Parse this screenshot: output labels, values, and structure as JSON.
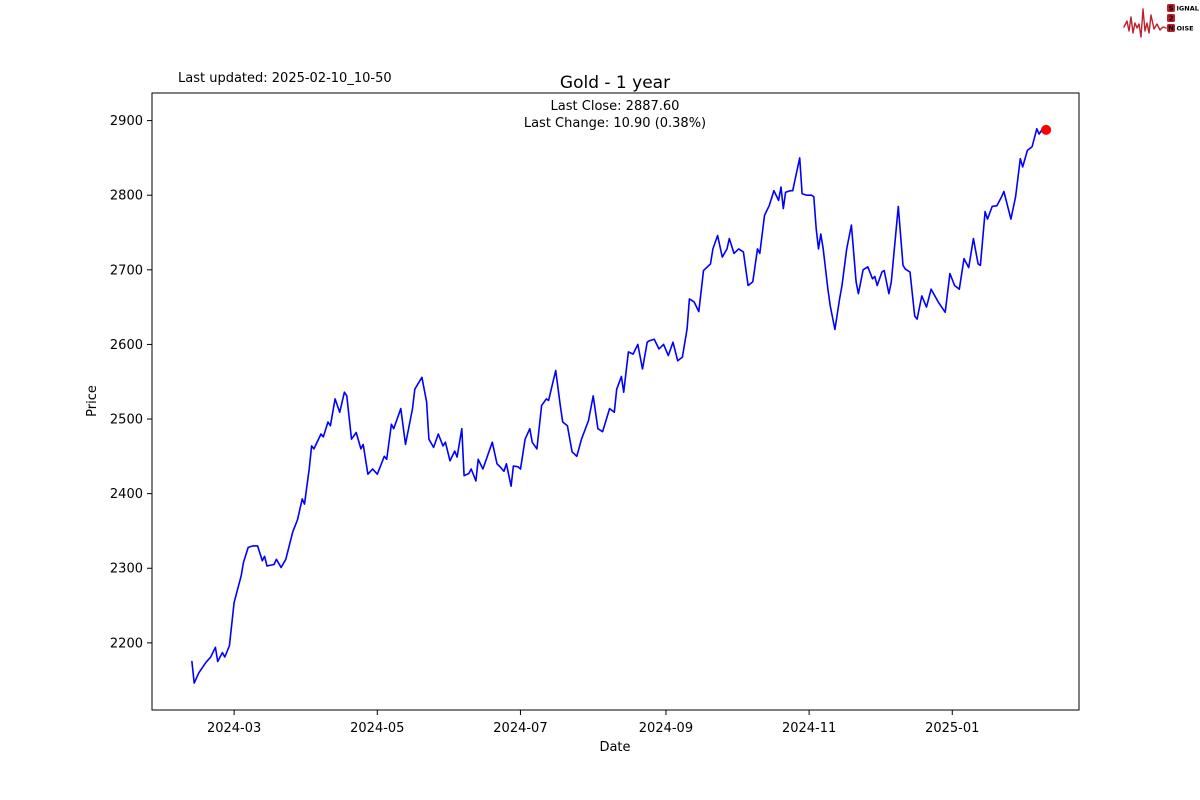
{
  "header": {
    "last_updated": "Last updated: 2025-02-10_10-50",
    "title": "Gold - 1 year",
    "subtitle_close": "Last Close: 2887.60",
    "subtitle_change": "Last Change: 10.90 (0.38%)"
  },
  "logo": {
    "word1_first": "S",
    "word1_rest": "IGNAL",
    "word2": "2",
    "word3_first": "N",
    "word3_rest": "OISE",
    "accent_color": "#c0202e",
    "text_color": "#1a1a1a"
  },
  "chart_data": {
    "type": "line",
    "title": "Gold - 1 year",
    "xlabel": "Date",
    "ylabel": "Price",
    "grid": false,
    "legend": "none",
    "line_color": "#0000ff",
    "line_width": 1.6,
    "end_marker_color": "#ff0000",
    "end_marker_radius": 5,
    "axis_color": "#000000",
    "xlim": [
      "2024-01-26",
      "2025-02-24"
    ],
    "ylim": [
      2110,
      2937
    ],
    "x_ticks": [
      {
        "label": "2024-03",
        "date": "2024-03-01"
      },
      {
        "label": "2024-05",
        "date": "2024-05-01"
      },
      {
        "label": "2024-07",
        "date": "2024-07-01"
      },
      {
        "label": "2024-09",
        "date": "2024-09-01"
      },
      {
        "label": "2024-11",
        "date": "2024-11-01"
      },
      {
        "label": "2025-01",
        "date": "2025-01-01"
      }
    ],
    "y_ticks": [
      2200,
      2300,
      2400,
      2500,
      2600,
      2700,
      2800,
      2900
    ],
    "last_close": 2887.6,
    "last_change": 10.9,
    "last_change_pct": "0.38%",
    "series": [
      {
        "name": "Gold",
        "points": [
          [
            "2024-02-12",
            2175
          ],
          [
            "2024-02-13",
            2146
          ],
          [
            "2024-02-15",
            2160
          ],
          [
            "2024-02-18",
            2174
          ],
          [
            "2024-02-20",
            2181
          ],
          [
            "2024-02-22",
            2194
          ],
          [
            "2024-02-23",
            2175
          ],
          [
            "2024-02-25",
            2187
          ],
          [
            "2024-02-26",
            2181
          ],
          [
            "2024-02-28",
            2196
          ],
          [
            "2024-03-01",
            2254
          ],
          [
            "2024-03-04",
            2290
          ],
          [
            "2024-03-05",
            2308
          ],
          [
            "2024-03-07",
            2328
          ],
          [
            "2024-03-09",
            2330
          ],
          [
            "2024-03-11",
            2330
          ],
          [
            "2024-03-13",
            2310
          ],
          [
            "2024-03-14",
            2316
          ],
          [
            "2024-03-15",
            2303
          ],
          [
            "2024-03-18",
            2305
          ],
          [
            "2024-03-19",
            2312
          ],
          [
            "2024-03-21",
            2301
          ],
          [
            "2024-03-23",
            2312
          ],
          [
            "2024-03-26",
            2349
          ],
          [
            "2024-03-28",
            2365
          ],
          [
            "2024-03-30",
            2393
          ],
          [
            "2024-03-31",
            2386
          ],
          [
            "2024-04-02",
            2433
          ],
          [
            "2024-04-03",
            2464
          ],
          [
            "2024-04-04",
            2460
          ],
          [
            "2024-04-07",
            2480
          ],
          [
            "2024-04-08",
            2476
          ],
          [
            "2024-04-10",
            2496
          ],
          [
            "2024-04-11",
            2491
          ],
          [
            "2024-04-13",
            2527
          ],
          [
            "2024-04-15",
            2509
          ],
          [
            "2024-04-17",
            2536
          ],
          [
            "2024-04-18",
            2531
          ],
          [
            "2024-04-20",
            2473
          ],
          [
            "2024-04-22",
            2482
          ],
          [
            "2024-04-24",
            2460
          ],
          [
            "2024-04-25",
            2466
          ],
          [
            "2024-04-27",
            2426
          ],
          [
            "2024-04-29",
            2433
          ],
          [
            "2024-05-01",
            2426
          ],
          [
            "2024-05-04",
            2450
          ],
          [
            "2024-05-05",
            2446
          ],
          [
            "2024-05-07",
            2493
          ],
          [
            "2024-05-08",
            2487
          ],
          [
            "2024-05-11",
            2514
          ],
          [
            "2024-05-13",
            2466
          ],
          [
            "2024-05-16",
            2514
          ],
          [
            "2024-05-17",
            2540
          ],
          [
            "2024-05-20",
            2556
          ],
          [
            "2024-05-22",
            2523
          ],
          [
            "2024-05-23",
            2473
          ],
          [
            "2024-05-25",
            2462
          ],
          [
            "2024-05-27",
            2480
          ],
          [
            "2024-05-29",
            2464
          ],
          [
            "2024-05-30",
            2469
          ],
          [
            "2024-06-01",
            2444
          ],
          [
            "2024-06-03",
            2457
          ],
          [
            "2024-06-04",
            2449
          ],
          [
            "2024-06-06",
            2487
          ],
          [
            "2024-06-07",
            2424
          ],
          [
            "2024-06-09",
            2427
          ],
          [
            "2024-06-10",
            2433
          ],
          [
            "2024-06-12",
            2417
          ],
          [
            "2024-06-13",
            2446
          ],
          [
            "2024-06-15",
            2433
          ],
          [
            "2024-06-19",
            2469
          ],
          [
            "2024-06-21",
            2440
          ],
          [
            "2024-06-22",
            2437
          ],
          [
            "2024-06-24",
            2430
          ],
          [
            "2024-06-25",
            2440
          ],
          [
            "2024-06-27",
            2410
          ],
          [
            "2024-06-28",
            2437
          ],
          [
            "2024-06-30",
            2436
          ],
          [
            "2024-07-01",
            2433
          ],
          [
            "2024-07-03",
            2473
          ],
          [
            "2024-07-05",
            2487
          ],
          [
            "2024-07-06",
            2469
          ],
          [
            "2024-07-08",
            2460
          ],
          [
            "2024-07-10",
            2518
          ],
          [
            "2024-07-12",
            2527
          ],
          [
            "2024-07-13",
            2525
          ],
          [
            "2024-07-16",
            2565
          ],
          [
            "2024-07-18",
            2518
          ],
          [
            "2024-07-19",
            2496
          ],
          [
            "2024-07-21",
            2491
          ],
          [
            "2024-07-23",
            2456
          ],
          [
            "2024-07-25",
            2450
          ],
          [
            "2024-07-27",
            2473
          ],
          [
            "2024-07-30",
            2498
          ],
          [
            "2024-08-01",
            2531
          ],
          [
            "2024-08-03",
            2487
          ],
          [
            "2024-08-05",
            2483
          ],
          [
            "2024-08-08",
            2514
          ],
          [
            "2024-08-10",
            2509
          ],
          [
            "2024-08-11",
            2540
          ],
          [
            "2024-08-13",
            2557
          ],
          [
            "2024-08-14",
            2536
          ],
          [
            "2024-08-16",
            2590
          ],
          [
            "2024-08-18",
            2587
          ],
          [
            "2024-08-20",
            2600
          ],
          [
            "2024-08-22",
            2567
          ],
          [
            "2024-08-24",
            2603
          ],
          [
            "2024-08-25",
            2605
          ],
          [
            "2024-08-27",
            2607
          ],
          [
            "2024-08-29",
            2594
          ],
          [
            "2024-08-31",
            2600
          ],
          [
            "2024-09-02",
            2585
          ],
          [
            "2024-09-04",
            2603
          ],
          [
            "2024-09-06",
            2578
          ],
          [
            "2024-09-08",
            2583
          ],
          [
            "2024-09-10",
            2621
          ],
          [
            "2024-09-11",
            2661
          ],
          [
            "2024-09-13",
            2657
          ],
          [
            "2024-09-15",
            2644
          ],
          [
            "2024-09-17",
            2699
          ],
          [
            "2024-09-20",
            2708
          ],
          [
            "2024-09-21",
            2728
          ],
          [
            "2024-09-23",
            2746
          ],
          [
            "2024-09-25",
            2717
          ],
          [
            "2024-09-27",
            2728
          ],
          [
            "2024-09-28",
            2742
          ],
          [
            "2024-09-30",
            2722
          ],
          [
            "2024-10-02",
            2728
          ],
          [
            "2024-10-04",
            2724
          ],
          [
            "2024-10-06",
            2679
          ],
          [
            "2024-10-08",
            2684
          ],
          [
            "2024-10-10",
            2728
          ],
          [
            "2024-10-11",
            2722
          ],
          [
            "2024-10-13",
            2773
          ],
          [
            "2024-10-15",
            2786
          ],
          [
            "2024-10-17",
            2806
          ],
          [
            "2024-10-19",
            2793
          ],
          [
            "2024-10-20",
            2811
          ],
          [
            "2024-10-21",
            2782
          ],
          [
            "2024-10-22",
            2804
          ],
          [
            "2024-10-24",
            2806
          ],
          [
            "2024-10-25",
            2806
          ],
          [
            "2024-10-28",
            2850
          ],
          [
            "2024-10-29",
            2802
          ],
          [
            "2024-10-31",
            2800
          ],
          [
            "2024-11-02",
            2800
          ],
          [
            "2024-11-03",
            2798
          ],
          [
            "2024-11-04",
            2755
          ],
          [
            "2024-11-05",
            2728
          ],
          [
            "2024-11-06",
            2748
          ],
          [
            "2024-11-07",
            2728
          ],
          [
            "2024-11-09",
            2674
          ],
          [
            "2024-11-10",
            2652
          ],
          [
            "2024-11-12",
            2620
          ],
          [
            "2024-11-14",
            2661
          ],
          [
            "2024-11-15",
            2679
          ],
          [
            "2024-11-17",
            2728
          ],
          [
            "2024-11-19",
            2760
          ],
          [
            "2024-11-21",
            2684
          ],
          [
            "2024-11-22",
            2668
          ],
          [
            "2024-11-24",
            2700
          ],
          [
            "2024-11-26",
            2704
          ],
          [
            "2024-11-28",
            2688
          ],
          [
            "2024-11-29",
            2691
          ],
          [
            "2024-11-30",
            2679
          ],
          [
            "2024-12-02",
            2697
          ],
          [
            "2024-12-03",
            2699
          ],
          [
            "2024-12-05",
            2668
          ],
          [
            "2024-12-06",
            2684
          ],
          [
            "2024-12-09",
            2785
          ],
          [
            "2024-12-11",
            2706
          ],
          [
            "2024-12-12",
            2701
          ],
          [
            "2024-12-14",
            2697
          ],
          [
            "2024-12-16",
            2638
          ],
          [
            "2024-12-17",
            2634
          ],
          [
            "2024-12-19",
            2665
          ],
          [
            "2024-12-21",
            2650
          ],
          [
            "2024-12-23",
            2674
          ],
          [
            "2024-12-26",
            2657
          ],
          [
            "2024-12-29",
            2643
          ],
          [
            "2024-12-31",
            2695
          ],
          [
            "2025-01-02",
            2679
          ],
          [
            "2025-01-04",
            2674
          ],
          [
            "2025-01-06",
            2715
          ],
          [
            "2025-01-08",
            2703
          ],
          [
            "2025-01-10",
            2742
          ],
          [
            "2025-01-12",
            2708
          ],
          [
            "2025-01-13",
            2706
          ],
          [
            "2025-01-15",
            2778
          ],
          [
            "2025-01-16",
            2768
          ],
          [
            "2025-01-18",
            2785
          ],
          [
            "2025-01-20",
            2786
          ],
          [
            "2025-01-22",
            2798
          ],
          [
            "2025-01-23",
            2805
          ],
          [
            "2025-01-26",
            2768
          ],
          [
            "2025-01-28",
            2798
          ],
          [
            "2025-01-30",
            2849
          ],
          [
            "2025-01-31",
            2838
          ],
          [
            "2025-02-02",
            2860
          ],
          [
            "2025-02-04",
            2865
          ],
          [
            "2025-02-06",
            2889
          ],
          [
            "2025-02-07",
            2882
          ],
          [
            "2025-02-09",
            2891
          ],
          [
            "2025-02-10",
            2887.6
          ]
        ]
      }
    ]
  }
}
